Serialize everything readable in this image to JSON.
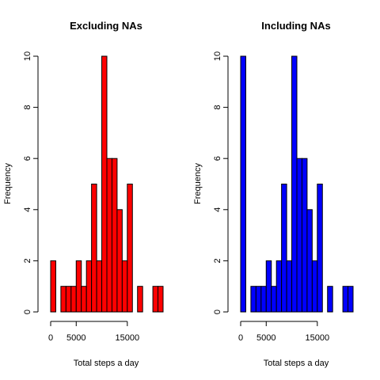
{
  "chart_data": [
    {
      "type": "bar",
      "title": "Excluding NAs",
      "xlabel": "Total steps a day",
      "ylabel": "Frequency",
      "bar_color": "#ff0000",
      "bin_width": 1000,
      "bin_start": 0,
      "values": [
        2,
        0,
        1,
        1,
        1,
        2,
        1,
        2,
        5,
        2,
        10,
        6,
        6,
        4,
        2,
        5,
        0,
        1,
        0,
        0,
        1,
        1
      ],
      "xticks": [
        {
          "value": 0,
          "label": "0"
        },
        {
          "value": 5000,
          "label": "5000"
        },
        {
          "value": 15000,
          "label": "15000"
        }
      ],
      "yticks": [
        {
          "value": 0,
          "label": "0"
        },
        {
          "value": 2,
          "label": "2"
        },
        {
          "value": 4,
          "label": "4"
        },
        {
          "value": 6,
          "label": "6"
        },
        {
          "value": 8,
          "label": "8"
        },
        {
          "value": 10,
          "label": "10"
        }
      ],
      "xlim": [
        0,
        22000
      ],
      "ylim": [
        0,
        10
      ]
    },
    {
      "type": "bar",
      "title": "Including NAs",
      "xlabel": "Total steps a day",
      "ylabel": "Frequency",
      "bar_color": "#0000ff",
      "bin_width": 1000,
      "bin_start": 0,
      "values": [
        10,
        0,
        1,
        1,
        1,
        2,
        1,
        2,
        5,
        2,
        10,
        6,
        6,
        4,
        2,
        5,
        0,
        1,
        0,
        0,
        1,
        1
      ],
      "xticks": [
        {
          "value": 0,
          "label": "0"
        },
        {
          "value": 5000,
          "label": "5000"
        },
        {
          "value": 15000,
          "label": "15000"
        }
      ],
      "yticks": [
        {
          "value": 0,
          "label": "0"
        },
        {
          "value": 2,
          "label": "2"
        },
        {
          "value": 4,
          "label": "4"
        },
        {
          "value": 6,
          "label": "6"
        },
        {
          "value": 8,
          "label": "8"
        },
        {
          "value": 10,
          "label": "10"
        }
      ],
      "xlim": [
        0,
        22000
      ],
      "ylim": [
        0,
        10
      ]
    }
  ]
}
